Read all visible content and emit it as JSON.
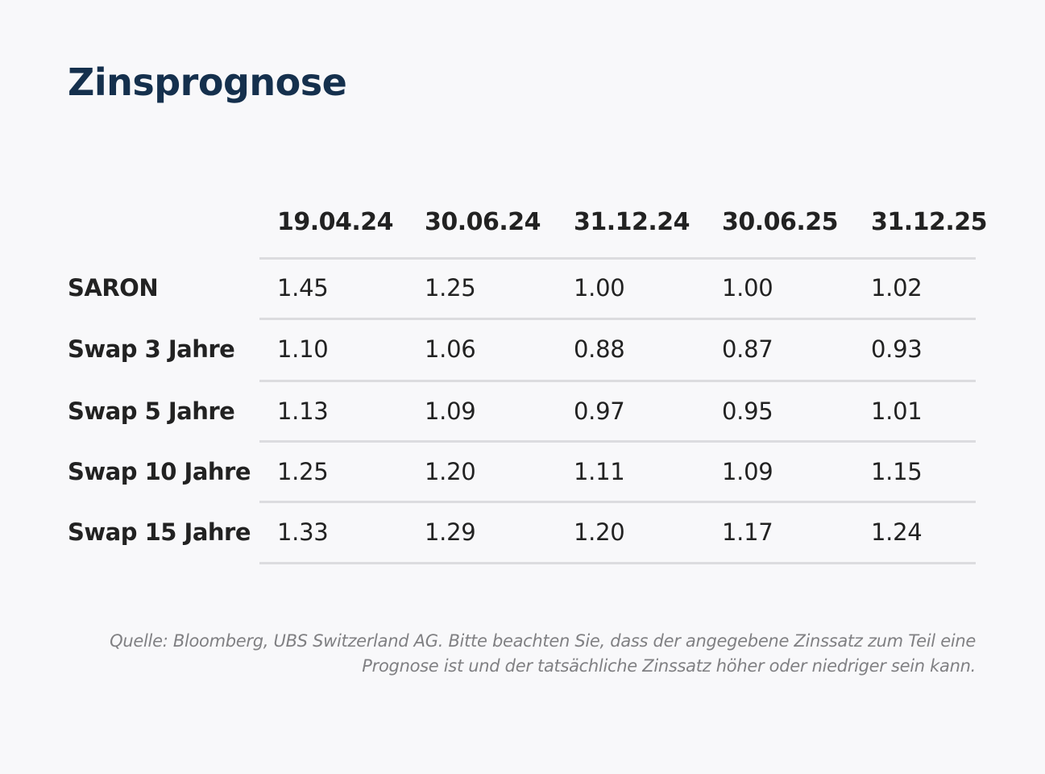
{
  "title": "Zinsprognose",
  "source": "Quelle: Bloomberg, UBS Switzerland AG. Bitte beachten Sie, dass der angegebene Zinssatz zum Teil eine Prognose ist und der tatsächliche Zinssatz höher oder niedriger sein kann.",
  "chart_data": {
    "type": "table",
    "title": "Zinsprognose",
    "columns": [
      "19.04.24",
      "30.06.24",
      "31.12.24",
      "30.06.25",
      "31.12.25"
    ],
    "rows": [
      {
        "label": "SARON",
        "values": [
          "1.45",
          "1.25",
          "1.00",
          "1.00",
          "1.02"
        ]
      },
      {
        "label": "Swap 3 Jahre",
        "values": [
          "1.10",
          "1.06",
          "0.88",
          "0.87",
          "0.93"
        ]
      },
      {
        "label": "Swap 5 Jahre",
        "values": [
          "1.13",
          "1.09",
          "0.97",
          "0.95",
          "1.01"
        ]
      },
      {
        "label": "Swap 10 Jahre",
        "values": [
          "1.25",
          "1.20",
          "1.11",
          "1.09",
          "1.15"
        ]
      },
      {
        "label": "Swap 15 Jahre",
        "values": [
          "1.33",
          "1.29",
          "1.20",
          "1.17",
          "1.24"
        ]
      }
    ]
  }
}
